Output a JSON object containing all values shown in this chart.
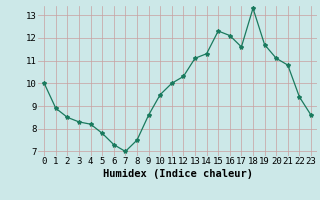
{
  "x": [
    0,
    1,
    2,
    3,
    4,
    5,
    6,
    7,
    8,
    9,
    10,
    11,
    12,
    13,
    14,
    15,
    16,
    17,
    18,
    19,
    20,
    21,
    22,
    23
  ],
  "y": [
    10.0,
    8.9,
    8.5,
    8.3,
    8.2,
    7.8,
    7.3,
    7.0,
    7.5,
    8.6,
    9.5,
    10.0,
    10.3,
    11.1,
    11.3,
    12.3,
    12.1,
    11.6,
    13.3,
    11.7,
    11.1,
    10.8,
    9.4,
    8.6
  ],
  "line_color": "#1a7a5e",
  "marker": "*",
  "marker_size": 3,
  "bg_color": "#cce8e8",
  "grid_color_major": "#c8a0a0",
  "grid_color_minor": "#ddc0c0",
  "xlabel": "Humidex (Indice chaleur)",
  "xlabel_fontsize": 7.5,
  "tick_fontsize": 6.5,
  "ylim": [
    6.8,
    13.4
  ],
  "xlim": [
    -0.5,
    23.5
  ],
  "yticks": [
    7,
    8,
    9,
    10,
    11,
    12,
    13
  ],
  "xticks": [
    0,
    1,
    2,
    3,
    4,
    5,
    6,
    7,
    8,
    9,
    10,
    11,
    12,
    13,
    14,
    15,
    16,
    17,
    18,
    19,
    20,
    21,
    22,
    23
  ]
}
